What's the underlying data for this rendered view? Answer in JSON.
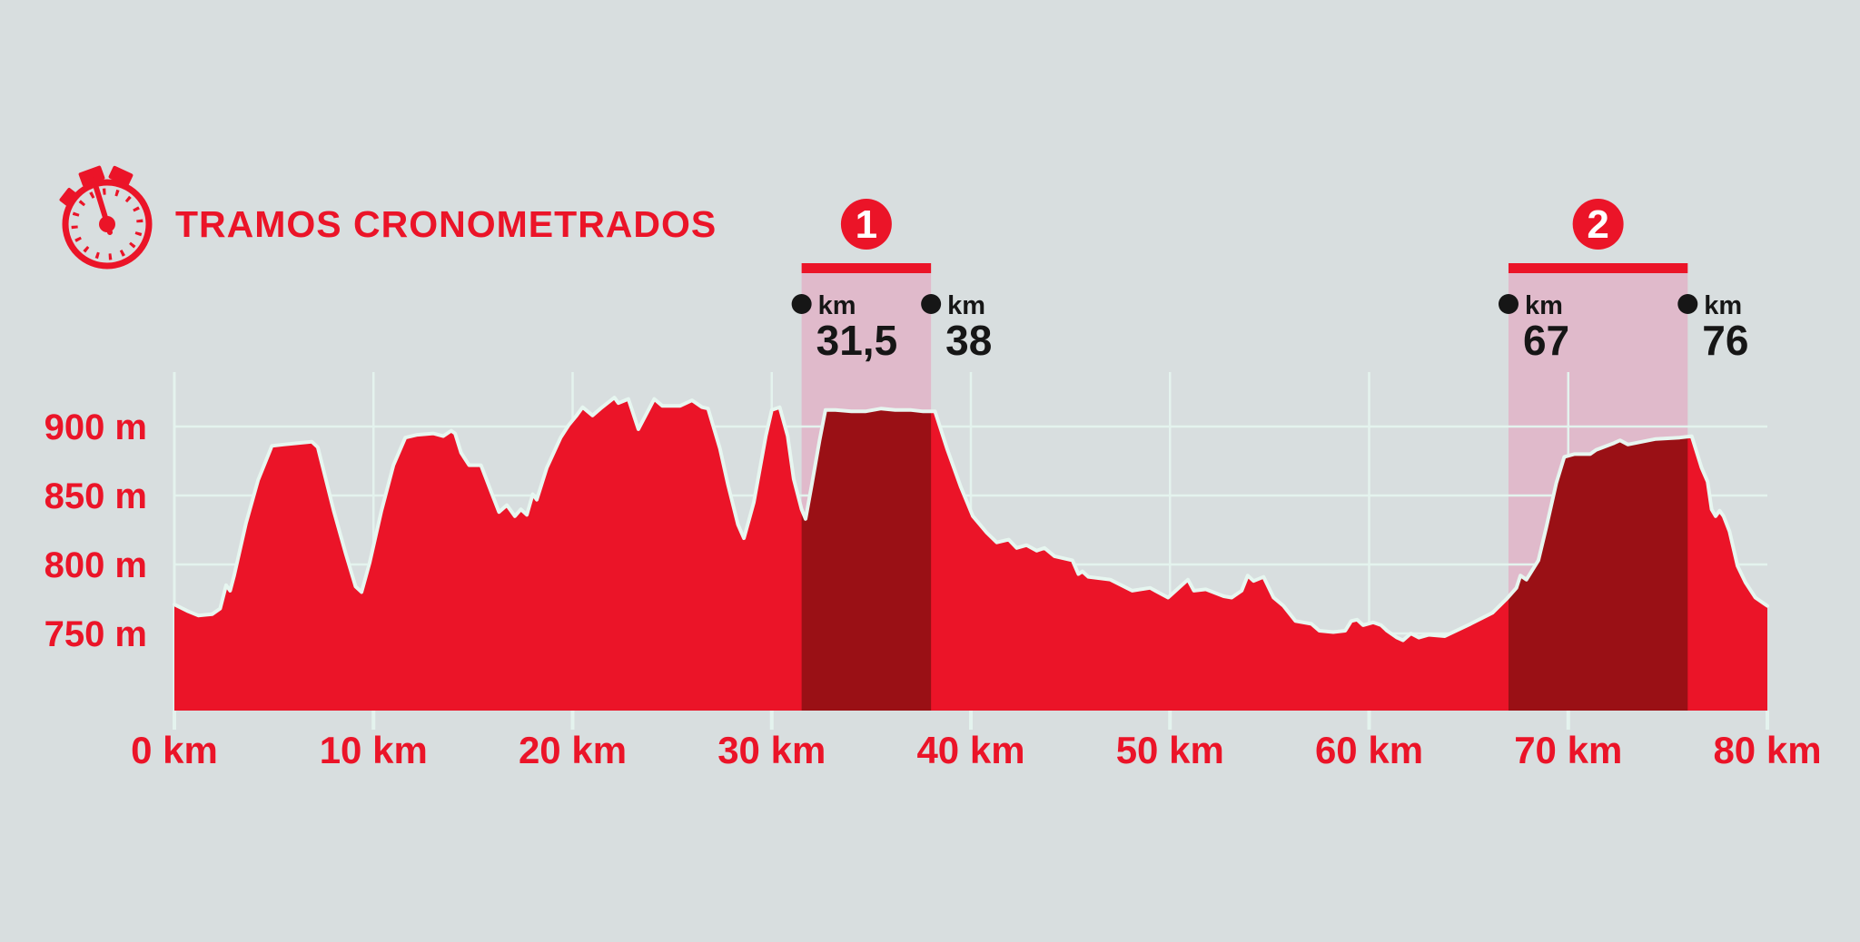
{
  "header": {
    "icon": "stopwatch-icon",
    "title": "TRAMOS CRONOMETRADOS"
  },
  "colors": {
    "background": "#d8dedf",
    "red": "#eb1428",
    "dark_red": "#9a1015",
    "band_pink": "#e0bacb",
    "grid": "#e4f3ee",
    "profile_outline": "#e7f6f0",
    "black": "#161616",
    "white": "#ffffff"
  },
  "chart_data": {
    "type": "area",
    "title": "TRAMOS CRONOMETRADOS",
    "x_unit": "km",
    "y_unit": "m",
    "xlim": [
      0,
      80
    ],
    "ylim": [
      695,
      940
    ],
    "grid": true,
    "legend": "none",
    "x_ticks": [
      {
        "value": 0,
        "label": "0 km"
      },
      {
        "value": 10,
        "label": "10 km"
      },
      {
        "value": 20,
        "label": "20 km"
      },
      {
        "value": 30,
        "label": "30 km"
      },
      {
        "value": 40,
        "label": "40 km"
      },
      {
        "value": 50,
        "label": "50 km"
      },
      {
        "value": 60,
        "label": "60 km"
      },
      {
        "value": 70,
        "label": "70 km"
      },
      {
        "value": 80,
        "label": "80 km"
      }
    ],
    "y_ticks": [
      {
        "value": 900,
        "label": "900 m"
      },
      {
        "value": 850,
        "label": "850 m"
      },
      {
        "value": 800,
        "label": "800 m"
      },
      {
        "value": 750,
        "label": "750 m"
      }
    ],
    "timed_sections": [
      {
        "label": "1",
        "start_km": 31.5,
        "end_km": 38,
        "start_label": "31,5",
        "end_label": "38",
        "unit": "km"
      },
      {
        "label": "2",
        "start_km": 67,
        "end_km": 76,
        "start_label": "67",
        "end_label": "76",
        "unit": "km"
      }
    ],
    "profile_km_m": [
      [
        0,
        771
      ],
      [
        0.7,
        766
      ],
      [
        1.2,
        763
      ],
      [
        1.9,
        764
      ],
      [
        2.3,
        768
      ],
      [
        2.6,
        785
      ],
      [
        2.8,
        781
      ],
      [
        3.0,
        792
      ],
      [
        3.6,
        830
      ],
      [
        4.2,
        861
      ],
      [
        4.9,
        886
      ],
      [
        5.5,
        887
      ],
      [
        6.2,
        888
      ],
      [
        6.9,
        889
      ],
      [
        7.2,
        885
      ],
      [
        8.0,
        839
      ],
      [
        8.6,
        808
      ],
      [
        9.1,
        784
      ],
      [
        9.4,
        780
      ],
      [
        9.8,
        801
      ],
      [
        10.4,
        839
      ],
      [
        11.0,
        872
      ],
      [
        11.6,
        892
      ],
      [
        12.2,
        894
      ],
      [
        13.0,
        895
      ],
      [
        13.5,
        893
      ],
      [
        13.9,
        897
      ],
      [
        14.1,
        895
      ],
      [
        14.4,
        881
      ],
      [
        14.8,
        872
      ],
      [
        15.4,
        872
      ],
      [
        15.9,
        853
      ],
      [
        16.3,
        838
      ],
      [
        16.7,
        843
      ],
      [
        17.1,
        835
      ],
      [
        17.4,
        840
      ],
      [
        17.7,
        836
      ],
      [
        18.0,
        851
      ],
      [
        18.2,
        847
      ],
      [
        18.7,
        870
      ],
      [
        19.4,
        892
      ],
      [
        19.8,
        901
      ],
      [
        20.2,
        908
      ],
      [
        20.5,
        914
      ],
      [
        21.0,
        908
      ],
      [
        21.4,
        913
      ],
      [
        22.1,
        921
      ],
      [
        22.3,
        917
      ],
      [
        22.8,
        920
      ],
      [
        23.3,
        898
      ],
      [
        24.1,
        920
      ],
      [
        24.5,
        915
      ],
      [
        25.4,
        915
      ],
      [
        26.0,
        919
      ],
      [
        26.5,
        914
      ],
      [
        26.8,
        913
      ],
      [
        27.4,
        884
      ],
      [
        27.8,
        858
      ],
      [
        28.3,
        829
      ],
      [
        28.6,
        819
      ],
      [
        29.1,
        845
      ],
      [
        29.7,
        893
      ],
      [
        30.0,
        912
      ],
      [
        30.4,
        914
      ],
      [
        30.8,
        893
      ],
      [
        31.1,
        862
      ],
      [
        31.5,
        840
      ],
      [
        31.7,
        833
      ],
      [
        32.0,
        857
      ],
      [
        32.4,
        890
      ],
      [
        32.7,
        912
      ],
      [
        33.2,
        912
      ],
      [
        34.0,
        911
      ],
      [
        34.7,
        911
      ],
      [
        35.5,
        913
      ],
      [
        36.2,
        912
      ],
      [
        37.0,
        912
      ],
      [
        37.6,
        911
      ],
      [
        38.2,
        911
      ],
      [
        38.8,
        884
      ],
      [
        39.5,
        856
      ],
      [
        40.1,
        835
      ],
      [
        40.8,
        823
      ],
      [
        41.3,
        816
      ],
      [
        41.9,
        818
      ],
      [
        42.3,
        812
      ],
      [
        42.8,
        814
      ],
      [
        43.3,
        810
      ],
      [
        43.7,
        812
      ],
      [
        44.2,
        806
      ],
      [
        45.1,
        803
      ],
      [
        45.4,
        793
      ],
      [
        45.6,
        795
      ],
      [
        45.9,
        791
      ],
      [
        47.0,
        789
      ],
      [
        48.1,
        781
      ],
      [
        49.0,
        783
      ],
      [
        49.9,
        776
      ],
      [
        50.9,
        789
      ],
      [
        51.2,
        781
      ],
      [
        51.8,
        782
      ],
      [
        52.7,
        777
      ],
      [
        53.1,
        776
      ],
      [
        53.6,
        781
      ],
      [
        53.9,
        792
      ],
      [
        54.2,
        788
      ],
      [
        54.7,
        791
      ],
      [
        55.2,
        776
      ],
      [
        55.7,
        770
      ],
      [
        56.3,
        759
      ],
      [
        57.1,
        757
      ],
      [
        57.5,
        752
      ],
      [
        58.2,
        751
      ],
      [
        58.8,
        752
      ],
      [
        59.1,
        759
      ],
      [
        59.4,
        760
      ],
      [
        59.7,
        756
      ],
      [
        60.2,
        758
      ],
      [
        60.6,
        756
      ],
      [
        60.9,
        752
      ],
      [
        61.4,
        747
      ],
      [
        61.7,
        745
      ],
      [
        62.1,
        750
      ],
      [
        62.5,
        747
      ],
      [
        63.0,
        749
      ],
      [
        63.8,
        748
      ],
      [
        65.1,
        757
      ],
      [
        66.2,
        765
      ],
      [
        66.9,
        775
      ],
      [
        67.4,
        783
      ],
      [
        67.6,
        792
      ],
      [
        67.9,
        789
      ],
      [
        68.5,
        803
      ],
      [
        68.9,
        827
      ],
      [
        69.4,
        859
      ],
      [
        69.8,
        878
      ],
      [
        70.3,
        880
      ],
      [
        71.1,
        880
      ],
      [
        71.4,
        883
      ],
      [
        72.3,
        888
      ],
      [
        72.6,
        890
      ],
      [
        73.0,
        887
      ],
      [
        74.4,
        891
      ],
      [
        75.6,
        892
      ],
      [
        76.2,
        893
      ],
      [
        76.7,
        870
      ],
      [
        77.0,
        860
      ],
      [
        77.2,
        840
      ],
      [
        77.4,
        835
      ],
      [
        77.6,
        839
      ],
      [
        77.8,
        835
      ],
      [
        78.1,
        824
      ],
      [
        78.5,
        799
      ],
      [
        78.9,
        787
      ],
      [
        79.4,
        776
      ],
      [
        79.8,
        772
      ],
      [
        80,
        770
      ]
    ]
  }
}
